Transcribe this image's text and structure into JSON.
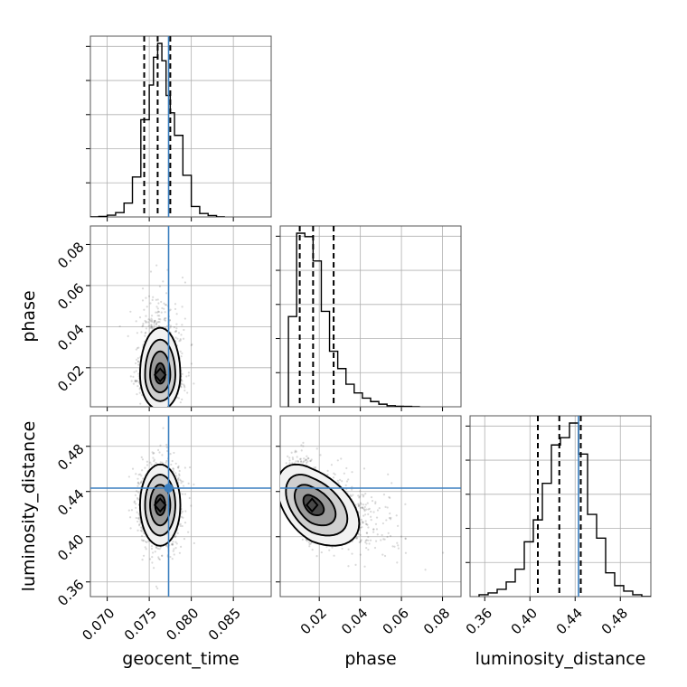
{
  "chart_data": {
    "type": "corner",
    "parameters": [
      {
        "key": "geocent_time",
        "label": "geocent_time",
        "range": [
          0.068,
          0.0895
        ],
        "ticks": [
          0.07,
          0.075,
          0.08,
          0.085
        ],
        "tick_labels": [
          "0.070",
          "0.075",
          "0.080",
          "0.085"
        ],
        "truth": 0.0773,
        "quantiles": [
          0.0744,
          0.076,
          0.0775
        ],
        "hist_edges": [
          0.068,
          0.069,
          0.07,
          0.071,
          0.072,
          0.073,
          0.074,
          0.075,
          0.0755,
          0.076,
          0.0765,
          0.077,
          0.0775,
          0.078,
          0.079,
          0.08,
          0.081,
          0.082,
          0.083,
          0.084
        ],
        "hist_counts": [
          0,
          0.3,
          1,
          2.5,
          8,
          23,
          56,
          76,
          92,
          100,
          90,
          70,
          60,
          47,
          24,
          6,
          2,
          0.8,
          0
        ]
      },
      {
        "key": "phase",
        "label": "phase",
        "range": [
          0.001,
          0.089
        ],
        "ticks": [
          0.02,
          0.04,
          0.06,
          0.08
        ],
        "tick_labels": [
          "0.02",
          "0.04",
          "0.06",
          "0.08"
        ],
        "truth": null,
        "quantiles": [
          0.0105,
          0.017,
          0.027
        ],
        "hist_edges": [
          0.005,
          0.009,
          0.013,
          0.017,
          0.021,
          0.025,
          0.029,
          0.033,
          0.037,
          0.041,
          0.045,
          0.049,
          0.053,
          0.057,
          0.061,
          0.065,
          0.069
        ],
        "hist_counts": [
          52,
          100,
          98,
          84,
          55,
          32,
          22,
          13,
          8,
          5,
          3,
          1.5,
          0.6,
          0.3,
          0.2,
          0
        ],
        "sample_center": [
          0.016,
          0.0775
        ],
        "sample_spread": [
          0.0085,
          0.0011
        ]
      },
      {
        "key": "luminosity_distance",
        "label": "luminosity_distance",
        "range": [
          0.347,
          0.507
        ],
        "ticks": [
          0.36,
          0.4,
          0.44,
          0.48
        ],
        "tick_labels": [
          "0.36",
          "0.40",
          "0.44",
          "0.48"
        ],
        "truth": 0.443,
        "quantiles": [
          0.407,
          0.426,
          0.445
        ],
        "hist_edges": [
          0.355,
          0.363,
          0.371,
          0.379,
          0.387,
          0.395,
          0.403,
          0.411,
          0.419,
          0.427,
          0.435,
          0.443,
          0.451,
          0.459,
          0.467,
          0.475,
          0.483,
          0.491,
          0.499,
          0.507
        ],
        "hist_counts": [
          1,
          2,
          4,
          8,
          15,
          30,
          42,
          62,
          83,
          87,
          95,
          78,
          45,
          32,
          13,
          6,
          3,
          1,
          0
        ]
      }
    ],
    "contour_levels": [
      "0.5-sigma",
      "1-sigma",
      "1.5-sigma",
      "2-sigma"
    ],
    "grid": true,
    "truth_color": "#3a7ebf",
    "contour_color": "#000000",
    "sample_color": "#555555",
    "pairs": [
      {
        "x": "geocent_time",
        "y": "phase",
        "mean": [
          0.0763,
          0.0165
        ],
        "sd": [
          0.0012,
          0.0085
        ],
        "rho": 0.0,
        "skew": [
          0.0,
          1.0
        ]
      },
      {
        "x": "geocent_time",
        "y": "luminosity_distance",
        "mean": [
          0.0763,
          0.428
        ],
        "sd": [
          0.0012,
          0.018
        ],
        "rho": 0.0,
        "skew": [
          0.0,
          0.0
        ]
      },
      {
        "x": "phase",
        "y": "luminosity_distance",
        "mean": [
          0.0165,
          0.428
        ],
        "sd": [
          0.0085,
          0.018
        ],
        "rho": -0.45,
        "skew": [
          1.0,
          0.0
        ]
      }
    ]
  }
}
